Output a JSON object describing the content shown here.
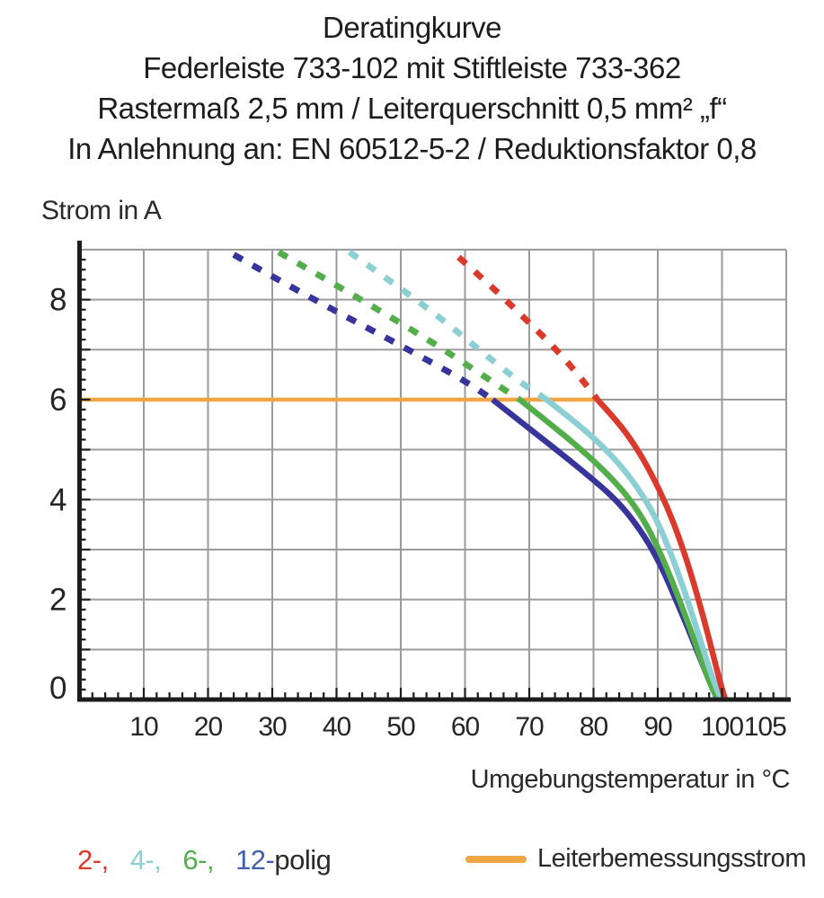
{
  "title": {
    "lines": [
      "Deratingkurve",
      "Federleiste 733-102 mit Stiftleiste 733-362",
      "Rastermaß 2,5 mm / Leiterquerschnitt 0,5 mm² „f“",
      "In Anlehnung an: EN 60512-5-2 / Reduktionsfaktor 0,8"
    ]
  },
  "axes": {
    "y_label": "Strom in A",
    "x_label": "Umgebungstemperatur in °C"
  },
  "legend": {
    "pole_items": [
      {
        "label": "2-,",
        "color": "#d93a2b"
      },
      {
        "label": "4-,",
        "color": "#8bced3"
      },
      {
        "label": "6-,",
        "color": "#52ad4a"
      },
      {
        "label": "12-",
        "color": "#3e5fae"
      }
    ],
    "pole_suffix": {
      "label": "polig",
      "color": "#2b2b2b"
    },
    "rated_current": {
      "label": "Leiterbemessungsstrom",
      "swatch_color": "#f0a544"
    }
  },
  "chart_data": {
    "type": "line",
    "title": "Deratingkurve",
    "xlabel": "Umgebungstemperatur in °C",
    "ylabel": "Strom in A",
    "xlim": [
      0,
      110
    ],
    "ylim": [
      0,
      9
    ],
    "grid": true,
    "grid_color": "#9b9b9b",
    "axis_color": "#1c1c1c",
    "x_gridlines": [
      10,
      20,
      30,
      40,
      50,
      60,
      70,
      80,
      90,
      100
    ],
    "y_gridlines": [
      1,
      2,
      3,
      4,
      5,
      6,
      7,
      8,
      9
    ],
    "x_tick_labels": [
      10,
      20,
      30,
      40,
      50,
      60,
      70,
      80,
      90,
      100,
      105
    ],
    "y_tick_labels": [
      0,
      2,
      4,
      6,
      8
    ],
    "x_minor_step": 2,
    "y_minor_step": 0.2,
    "rated_current_value": 6,
    "series": [
      {
        "name": "Leiterbemessungsstrom",
        "color": "#f0a544",
        "style": "solid",
        "width": 4.5,
        "points": [
          [
            0,
            6
          ],
          [
            80.8,
            6
          ]
        ]
      },
      {
        "name": "12-polig",
        "color": "#37349b",
        "dashed_points": [
          [
            24,
            8.9
          ],
          [
            32,
            8.32
          ],
          [
            40,
            7.76
          ],
          [
            48,
            7.22
          ],
          [
            56,
            6.66
          ],
          [
            60.5,
            6.33
          ],
          [
            64.3,
            6.0
          ]
        ],
        "solid_points": [
          [
            64.3,
            6.0
          ],
          [
            69,
            5.52
          ],
          [
            74,
            5.02
          ],
          [
            79,
            4.5
          ],
          [
            83,
            4.06
          ],
          [
            86,
            3.62
          ],
          [
            88.5,
            3.15
          ],
          [
            90.8,
            2.6
          ],
          [
            92.8,
            2.0
          ],
          [
            94.8,
            1.4
          ],
          [
            96.5,
            0.85
          ],
          [
            98,
            0.38
          ],
          [
            99.3,
            0
          ]
        ]
      },
      {
        "name": "6-polig",
        "color": "#52ad4a",
        "dashed_points": [
          [
            31,
            8.95
          ],
          [
            39,
            8.36
          ],
          [
            47,
            7.76
          ],
          [
            55,
            7.14
          ],
          [
            62,
            6.55
          ],
          [
            68.5,
            6.0
          ]
        ],
        "solid_points": [
          [
            68.5,
            6.0
          ],
          [
            73,
            5.54
          ],
          [
            77.5,
            5.07
          ],
          [
            81.5,
            4.6
          ],
          [
            85,
            4.12
          ],
          [
            87.8,
            3.6
          ],
          [
            90,
            3.05
          ],
          [
            92,
            2.45
          ],
          [
            94,
            1.78
          ],
          [
            95.8,
            1.15
          ],
          [
            97.3,
            0.6
          ],
          [
            98.6,
            0.18
          ],
          [
            99.5,
            0
          ]
        ]
      },
      {
        "name": "4-polig",
        "color": "#8bced3",
        "dashed_points": [
          [
            42,
            8.95
          ],
          [
            49,
            8.32
          ],
          [
            56,
            7.65
          ],
          [
            62,
            7.02
          ],
          [
            68,
            6.4
          ],
          [
            72.7,
            6.0
          ]
        ],
        "solid_points": [
          [
            72.7,
            6.0
          ],
          [
            76.5,
            5.62
          ],
          [
            80.5,
            5.18
          ],
          [
            84,
            4.72
          ],
          [
            87,
            4.22
          ],
          [
            89.5,
            3.68
          ],
          [
            91.5,
            3.1
          ],
          [
            93.5,
            2.42
          ],
          [
            95.5,
            1.65
          ],
          [
            97.2,
            0.95
          ],
          [
            98.6,
            0.4
          ],
          [
            99.9,
            0
          ]
        ]
      },
      {
        "name": "2-polig",
        "color": "#d93a2b",
        "dashed_points": [
          [
            59,
            8.85
          ],
          [
            64,
            8.28
          ],
          [
            69,
            7.66
          ],
          [
            73.5,
            7.1
          ],
          [
            77.5,
            6.52
          ],
          [
            80.6,
            6.0
          ]
        ],
        "solid_points": [
          [
            80.6,
            6.0
          ],
          [
            83.5,
            5.6
          ],
          [
            86.5,
            5.08
          ],
          [
            89,
            4.52
          ],
          [
            91.5,
            3.85
          ],
          [
            93.5,
            3.18
          ],
          [
            95.5,
            2.38
          ],
          [
            97.2,
            1.6
          ],
          [
            98.6,
            0.9
          ],
          [
            99.8,
            0.3
          ],
          [
            100.5,
            0
          ]
        ]
      }
    ]
  }
}
